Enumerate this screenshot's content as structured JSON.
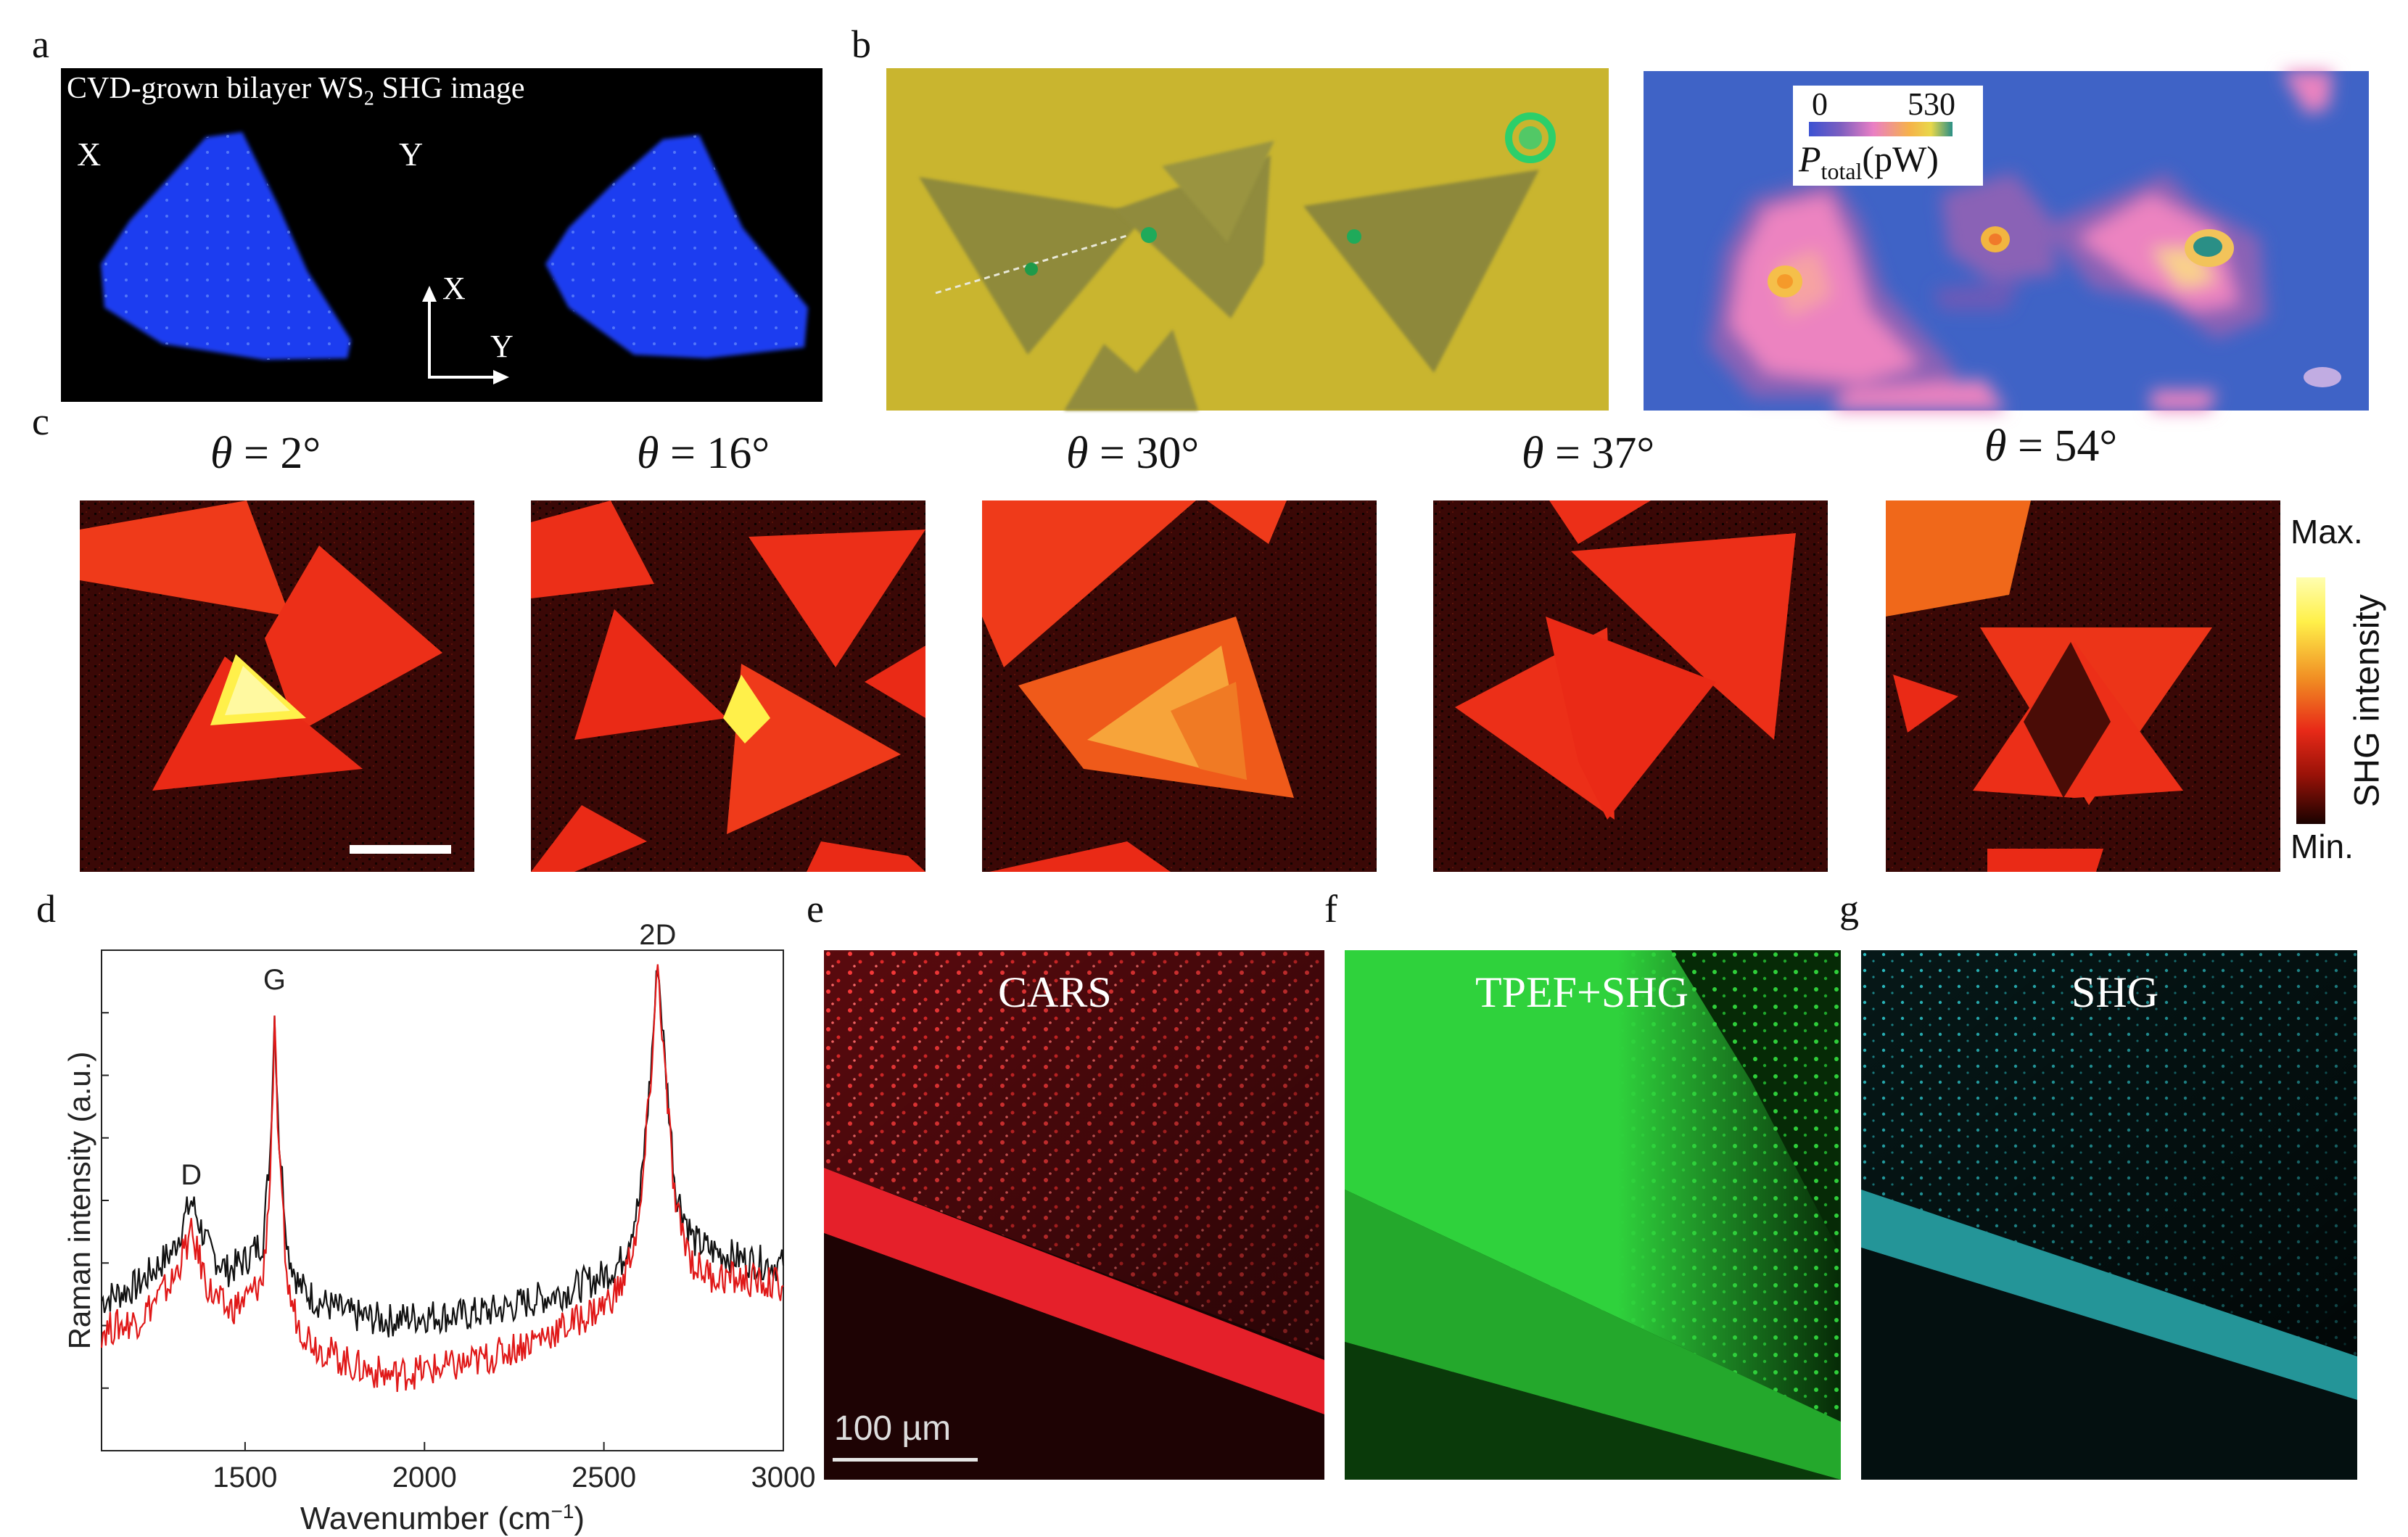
{
  "panel_labels": {
    "a": "a",
    "b": "b",
    "c": "c",
    "d": "d",
    "e": "e",
    "f": "f",
    "g": "g"
  },
  "panel_a": {
    "title_pre": "CVD-grown bilayer WS",
    "title_sub": "2",
    "title_post": " SHG image",
    "left_label": "X",
    "right_label": "Y",
    "axis_x": "X",
    "axis_y": "Y"
  },
  "panel_b": {
    "colorbar_min": "0",
    "colorbar_max": "530",
    "colorbar_label_main": "P",
    "colorbar_label_sub": "total",
    "colorbar_label_unit": "(pW)"
  },
  "panel_c": {
    "theta_symbol": "θ",
    "angles": [
      "= 2°",
      "= 16°",
      "= 30°",
      "= 37°",
      "= 54°"
    ],
    "colorbar_max": "Max.",
    "colorbar_min": "Min.",
    "colorbar_title": "SHG intensity"
  },
  "panel_e": {
    "label": "CARS",
    "scalebar": "100 µm"
  },
  "panel_f": {
    "label": "TPEF+SHG"
  },
  "panel_g": {
    "label": "SHG"
  },
  "colors": {
    "shg_blue": "#1f3cf0",
    "optical_yellow": "#c8b12c",
    "map_blue": "#3f63c6",
    "shg_red": "#e8231a",
    "cars_red": "#e5202a",
    "tpef_green": "#2fcf3a",
    "shg_cyan": "#2bbfc4",
    "spectrum_black": "#111111",
    "spectrum_red": "#e01818"
  },
  "chart_data": {
    "type": "line",
    "title": "",
    "xlabel_main": "Wavenumber (cm",
    "xlabel_sup": "−1",
    "xlabel_end": ")",
    "ylabel": "Raman intensity (a.u.)",
    "xlim": [
      1100,
      3000
    ],
    "ylim": [
      0,
      1.0
    ],
    "xticks": [
      1500,
      2000,
      2500,
      3000
    ],
    "xtick_labels": [
      "1500",
      "2000",
      "2500",
      "3000"
    ],
    "peak_labels": [
      {
        "text": "D",
        "x": 1350,
        "y": 0.52
      },
      {
        "text": "G",
        "x": 1582,
        "y": 0.91
      },
      {
        "text": "2D",
        "x": 2650,
        "y": 1.0
      }
    ],
    "series": [
      {
        "name": "black",
        "color": "#111111",
        "x": [
          1100,
          1200,
          1300,
          1330,
          1350,
          1370,
          1400,
          1450,
          1500,
          1550,
          1570,
          1582,
          1595,
          1620,
          1650,
          1700,
          1800,
          1900,
          2000,
          2100,
          2200,
          2300,
          2400,
          2500,
          2550,
          2600,
          2630,
          2650,
          2670,
          2700,
          2750,
          2800,
          2900,
          3000
        ],
        "y": [
          0.3,
          0.33,
          0.4,
          0.46,
          0.5,
          0.46,
          0.4,
          0.36,
          0.38,
          0.42,
          0.6,
          0.87,
          0.62,
          0.4,
          0.33,
          0.3,
          0.27,
          0.26,
          0.27,
          0.27,
          0.28,
          0.3,
          0.32,
          0.35,
          0.38,
          0.5,
          0.75,
          0.98,
          0.78,
          0.52,
          0.42,
          0.4,
          0.38,
          0.37
        ]
      },
      {
        "name": "red",
        "color": "#e01818",
        "x": [
          1100,
          1200,
          1300,
          1330,
          1350,
          1370,
          1400,
          1450,
          1500,
          1550,
          1570,
          1582,
          1595,
          1620,
          1650,
          1700,
          1800,
          1900,
          2000,
          2100,
          2200,
          2300,
          2400,
          2500,
          2550,
          2600,
          2630,
          2650,
          2670,
          2700,
          2750,
          2800,
          2900,
          3000
        ],
        "y": [
          0.24,
          0.26,
          0.34,
          0.4,
          0.43,
          0.39,
          0.32,
          0.28,
          0.3,
          0.34,
          0.55,
          0.84,
          0.57,
          0.32,
          0.25,
          0.21,
          0.17,
          0.15,
          0.16,
          0.17,
          0.19,
          0.22,
          0.25,
          0.29,
          0.33,
          0.46,
          0.74,
          0.97,
          0.76,
          0.48,
          0.37,
          0.35,
          0.34,
          0.33
        ]
      }
    ]
  }
}
